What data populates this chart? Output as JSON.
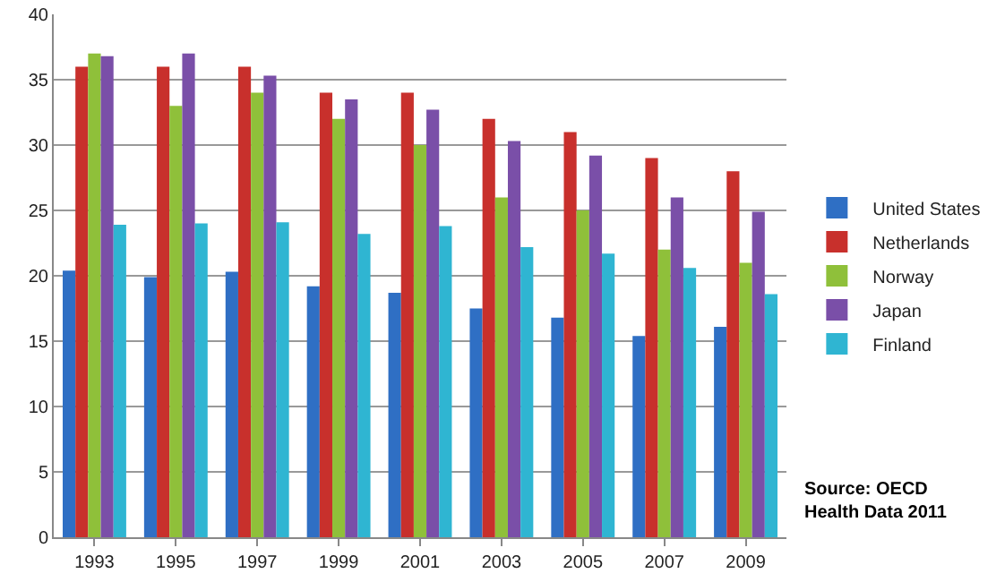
{
  "chart_data": {
    "type": "bar",
    "categories": [
      "1993",
      "1995",
      "1997",
      "1999",
      "2001",
      "2003",
      "2005",
      "2007",
      "2009"
    ],
    "series": [
      {
        "name": "United States",
        "color": "#2f6fc4",
        "values": [
          20.4,
          19.9,
          20.3,
          19.2,
          18.7,
          17.5,
          16.8,
          15.4,
          16.1
        ]
      },
      {
        "name": "Netherlands",
        "color": "#c8302c",
        "values": [
          36,
          36,
          36,
          34,
          34,
          32,
          31,
          29,
          28
        ]
      },
      {
        "name": "Norway",
        "color": "#8fc03a",
        "values": [
          37,
          33,
          34,
          32,
          30,
          26,
          25,
          22,
          21
        ]
      },
      {
        "name": "Japan",
        "color": "#7a4fa8",
        "values": [
          36.8,
          37,
          35.3,
          33.5,
          32.7,
          30.3,
          29.2,
          26,
          24.9
        ]
      },
      {
        "name": "Finland",
        "color": "#2fb5d2",
        "values": [
          23.9,
          24,
          24.1,
          23.2,
          23.8,
          22.2,
          21.7,
          20.6,
          18.6
        ]
      }
    ],
    "ylim": [
      0,
      40
    ],
    "yticks": [
      0,
      5,
      10,
      15,
      20,
      25,
      30,
      35,
      40
    ],
    "grid": "y",
    "legend": "right",
    "annotations": [
      "Source: OECD\nHealth Data 2011"
    ]
  }
}
